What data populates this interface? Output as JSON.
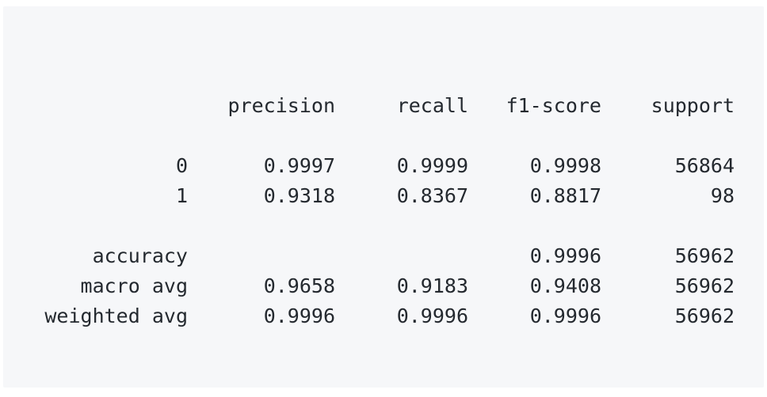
{
  "report": {
    "headers": {
      "precision": "precision",
      "recall": "recall",
      "f1": "f1-score",
      "support": "support"
    },
    "rows": [
      {
        "label": "0",
        "precision": "0.9997",
        "recall": "0.9999",
        "f1": "0.9998",
        "support": "56864"
      },
      {
        "label": "1",
        "precision": "0.9318",
        "recall": "0.8367",
        "f1": "0.8817",
        "support": "98"
      }
    ],
    "accuracy": {
      "label": "accuracy",
      "f1": "0.9996",
      "support": "56962"
    },
    "macro_avg": {
      "label": "macro avg",
      "precision": "0.9658",
      "recall": "0.9183",
      "f1": "0.9408",
      "support": "56962"
    },
    "weighted_avg": {
      "label": "weighted avg",
      "precision": "0.9996",
      "recall": "0.9996",
      "f1": "0.9996",
      "support": "56962"
    }
  }
}
